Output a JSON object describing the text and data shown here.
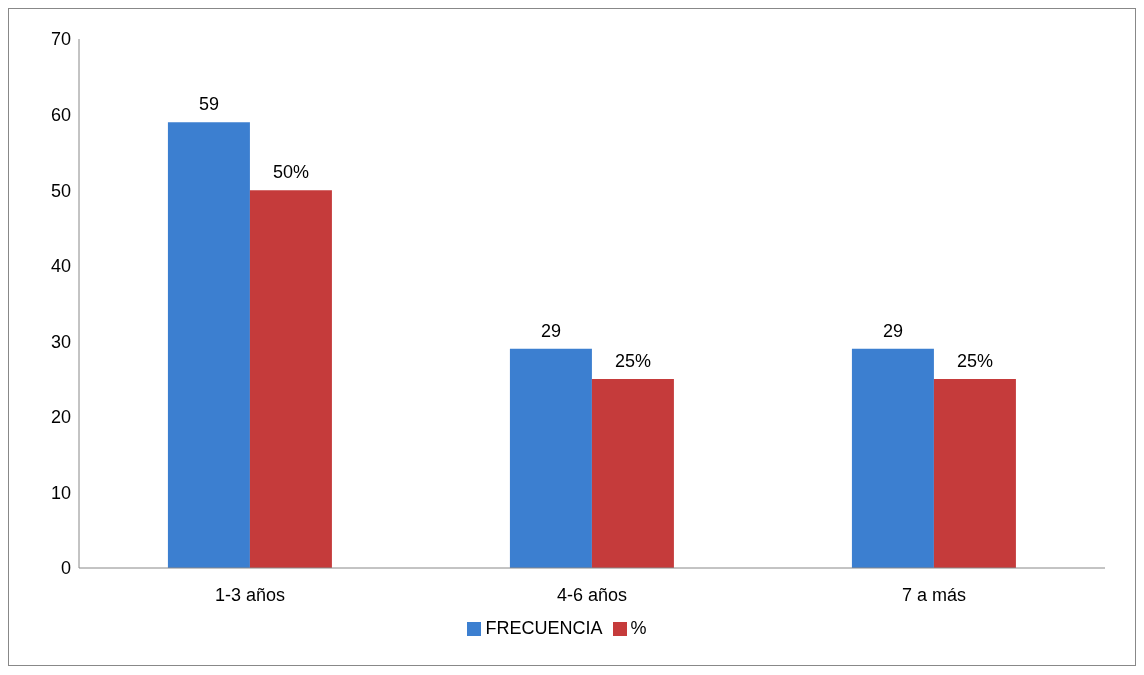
{
  "chart_data": {
    "type": "bar",
    "categories": [
      "1-3 años",
      "4-6 años",
      "7 a más"
    ],
    "series": [
      {
        "name": "FRECUENCIA",
        "color": "#3c7fd0",
        "values": [
          59,
          29,
          29
        ],
        "value_labels": [
          "59",
          "29",
          "29"
        ]
      },
      {
        "name": "%",
        "color": "#c53b3b",
        "values": [
          50,
          25,
          25
        ],
        "value_labels": [
          "50%",
          "25%",
          "25%"
        ]
      }
    ],
    "ylim": [
      0,
      70
    ],
    "yticks": [
      0,
      10,
      20,
      30,
      40,
      50,
      60,
      70
    ],
    "grid": false,
    "legend": "bottom"
  }
}
